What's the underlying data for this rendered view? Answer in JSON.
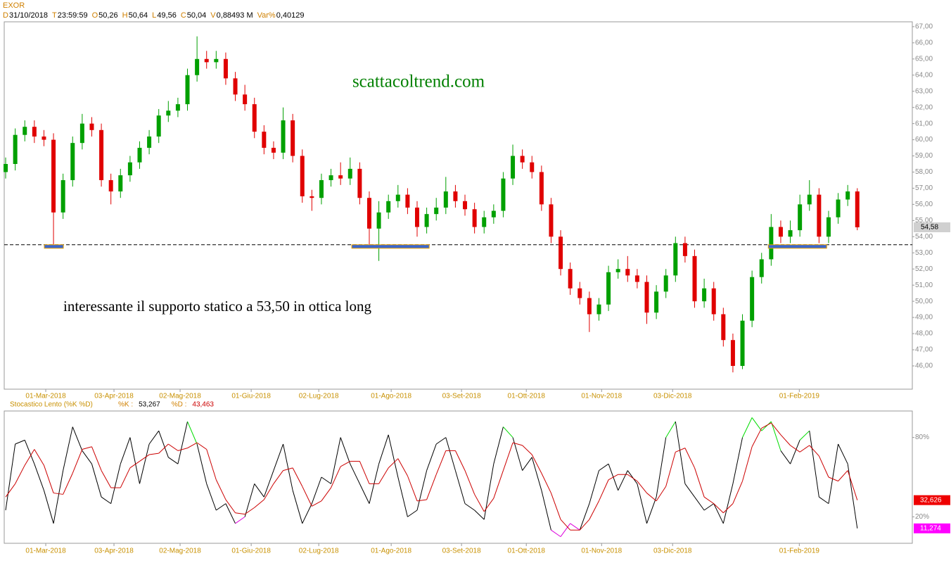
{
  "chart_data": [
    {
      "type": "candlestick",
      "title": "EXOR",
      "header": [
        {
          "key": "D",
          "value": "31/10/2018"
        },
        {
          "key": "T",
          "value": "23:59:59"
        },
        {
          "key": "O",
          "value": "50,26"
        },
        {
          "key": "H",
          "value": "50,64"
        },
        {
          "key": "L",
          "value": "49,56"
        },
        {
          "key": "C",
          "value": "50,04"
        },
        {
          "key": "V",
          "value": "0,88493 M"
        },
        {
          "key": "Var%",
          "value": "0,40129"
        }
      ],
      "annotations": [
        "scattacoltrend.com",
        "interessante il supporto statico a 53,50 in ottica long"
      ],
      "xlim": [
        -0.15,
        94.75
      ],
      "xticks": [
        {
          "value": 4.19,
          "label": "01-Mar-2018"
        },
        {
          "value": 11.32,
          "label": "03-Apr-2018"
        },
        {
          "value": 18.23,
          "label": "02-Mag-2018"
        },
        {
          "value": 25.66,
          "label": "01-Giu-2018"
        },
        {
          "value": 32.72,
          "label": "02-Lug-2018"
        },
        {
          "value": 40.29,
          "label": "01-Ago-2018"
        },
        {
          "value": 47.64,
          "label": "03-Set-2018"
        },
        {
          "value": 54.41,
          "label": "01-Ott-2018"
        },
        {
          "value": 62.28,
          "label": "01-Nov-2018"
        },
        {
          "value": 69.7,
          "label": "03-Dic-2018"
        },
        {
          "value": 82.94,
          "label": "01-Feb-2019"
        }
      ],
      "ylim": [
        44.56,
        67.3
      ],
      "yticks": [
        {
          "value": 46,
          "label": "46,00"
        },
        {
          "value": 47,
          "label": "47,00"
        },
        {
          "value": 48,
          "label": "48,00"
        },
        {
          "value": 49,
          "label": "49,00"
        },
        {
          "value": 50,
          "label": "50,00"
        },
        {
          "value": 51,
          "label": "51,00"
        },
        {
          "value": 52,
          "label": "52,00"
        },
        {
          "value": 53,
          "label": "53,00"
        },
        {
          "value": 54,
          "label": "54,00"
        },
        {
          "value": 55,
          "label": "55,00"
        },
        {
          "value": 56,
          "label": "56,00"
        },
        {
          "value": 57,
          "label": "57,00"
        },
        {
          "value": 58,
          "label": "58,00"
        },
        {
          "value": 59,
          "label": "59,00"
        },
        {
          "value": 60,
          "label": "60,00"
        },
        {
          "value": 61,
          "label": "61,00"
        },
        {
          "value": 62,
          "label": "62,00"
        },
        {
          "value": 63,
          "label": "63,00"
        },
        {
          "value": 64,
          "label": "64,00"
        },
        {
          "value": 65,
          "label": "65,00"
        },
        {
          "value": 66,
          "label": "66,00"
        },
        {
          "value": 67,
          "label": "67,00"
        }
      ],
      "up_color": "#00a000",
      "down_color": "#e00000",
      "open": [
        58.0,
        58.5,
        60.3,
        60.8,
        60.2,
        60.0,
        55.5,
        57.5,
        59.8,
        61.0,
        60.6,
        57.5,
        56.8,
        57.8,
        58.6,
        59.5,
        60.2,
        61.5,
        61.8,
        62.2,
        64.0,
        65.0,
        64.8,
        65.0,
        63.8,
        62.8,
        62.2,
        60.5,
        59.5,
        59.2,
        61.2,
        59.0,
        56.5,
        56.4,
        57.5,
        57.8,
        57.6,
        58.2,
        56.4,
        54.5,
        55.5,
        56.2,
        56.6,
        55.8,
        54.6,
        55.4,
        55.8,
        56.8,
        56.2,
        55.7,
        54.6,
        55.2,
        55.6,
        57.6,
        59.0,
        58.6,
        58.0,
        56.0,
        54.0,
        52.0,
        50.8,
        50.2,
        49.2,
        49.8,
        51.8,
        52.0,
        51.6,
        51.2,
        49.3,
        50.6,
        51.6,
        53.6,
        52.8,
        50.0,
        50.8,
        49.2,
        47.6,
        46.0,
        48.8,
        51.5,
        52.6,
        54.6,
        54.0,
        54.4,
        56.0,
        56.6,
        54.0,
        55.2,
        56.3,
        56.8
      ],
      "high": [
        58.9,
        60.7,
        61.2,
        61.2,
        60.6,
        60.4,
        57.9,
        60.2,
        61.6,
        61.4,
        61.0,
        57.9,
        58.2,
        59.0,
        59.9,
        60.6,
        61.9,
        62.4,
        62.6,
        64.4,
        66.4,
        65.5,
        65.5,
        65.4,
        64.2,
        63.4,
        62.6,
        60.9,
        59.9,
        62.0,
        61.6,
        59.4,
        56.9,
        57.9,
        58.2,
        58.6,
        58.9,
        58.6,
        56.8,
        56.2,
        56.6,
        57.2,
        57.0,
        56.2,
        55.8,
        56.4,
        57.7,
        57.2,
        56.6,
        56.1,
        55.6,
        56.0,
        58.0,
        59.7,
        59.4,
        59.0,
        58.4,
        56.4,
        54.4,
        52.4,
        51.2,
        50.6,
        50.2,
        52.2,
        52.6,
        52.8,
        52.0,
        51.6,
        51.0,
        52.0,
        54.0,
        54.0,
        53.2,
        51.4,
        51.2,
        49.6,
        48.0,
        49.2,
        51.9,
        53.0,
        55.4,
        55.0,
        55.0,
        56.6,
        57.5,
        57.0,
        55.6,
        56.7,
        57.2,
        57.0
      ],
      "low": [
        57.6,
        58.1,
        59.9,
        59.8,
        59.6,
        53.5,
        55.1,
        57.1,
        59.4,
        60.2,
        57.1,
        56.0,
        56.4,
        57.4,
        58.2,
        59.1,
        59.8,
        61.1,
        61.4,
        61.8,
        63.6,
        64.4,
        64.4,
        63.4,
        62.4,
        61.8,
        60.1,
        59.1,
        58.8,
        58.8,
        58.6,
        56.1,
        55.6,
        56.0,
        57.1,
        57.2,
        57.2,
        56.0,
        53.5,
        52.5,
        55.1,
        55.8,
        55.4,
        54.0,
        54.2,
        55.0,
        55.4,
        55.8,
        55.3,
        54.2,
        54.2,
        54.8,
        55.2,
        57.2,
        58.2,
        57.6,
        55.6,
        53.6,
        51.6,
        50.4,
        49.8,
        48.1,
        48.8,
        49.4,
        51.4,
        51.2,
        50.8,
        48.6,
        48.9,
        50.2,
        51.2,
        52.4,
        49.6,
        49.6,
        48.8,
        47.2,
        45.6,
        45.8,
        48.4,
        51.1,
        52.2,
        53.6,
        53.6,
        54.0,
        55.6,
        53.6,
        53.6,
        54.8,
        55.9,
        54.4
      ],
      "close": [
        58.5,
        60.3,
        60.8,
        60.2,
        60.0,
        55.5,
        57.5,
        59.8,
        61.0,
        60.6,
        57.5,
        56.8,
        57.8,
        58.6,
        59.5,
        60.2,
        61.5,
        61.8,
        62.2,
        64.0,
        65.0,
        64.8,
        65.0,
        63.8,
        62.8,
        62.2,
        60.5,
        59.5,
        59.2,
        61.2,
        59.0,
        56.5,
        56.4,
        57.5,
        57.8,
        57.6,
        58.2,
        56.4,
        54.5,
        55.5,
        56.2,
        56.6,
        55.8,
        54.6,
        55.4,
        55.8,
        56.8,
        56.2,
        55.7,
        54.6,
        55.2,
        55.6,
        57.6,
        59.0,
        58.6,
        58.0,
        56.0,
        54.0,
        52.0,
        50.8,
        50.2,
        49.2,
        49.8,
        51.8,
        52.0,
        51.6,
        51.2,
        49.3,
        50.6,
        51.6,
        53.6,
        52.8,
        50.0,
        50.8,
        49.2,
        47.6,
        46.0,
        48.8,
        51.5,
        52.6,
        54.6,
        54.0,
        54.4,
        56.0,
        56.6,
        54.0,
        55.2,
        56.3,
        56.8,
        54.58
      ],
      "support": 53.5,
      "support_zones": [
        [
          4.04,
          6.03
        ],
        [
          36.17,
          44.26
        ],
        [
          79.7,
          85.8
        ]
      ],
      "last_price": {
        "value": 54.58,
        "label": "54,58"
      }
    },
    {
      "type": "line",
      "title": "Stocastico Lento (%K %D)",
      "header": [
        {
          "key": "%K :",
          "value": "53,267"
        },
        {
          "key": "%D :",
          "value": "43,463"
        }
      ],
      "ylim": [
        0,
        100
      ],
      "yticks": [
        {
          "value": 80,
          "label": "80%"
        },
        {
          "value": 20,
          "label": "20%"
        }
      ],
      "high_color": "#00dd00",
      "low_color": "#dd00dd",
      "series": [
        {
          "color": "#000000",
          "last": {
            "value": 11.274,
            "label": "11,274"
          },
          "label_color": "#ff00ff",
          "values": [
            25,
            75,
            78,
            60,
            40,
            15,
            55,
            88,
            70,
            60,
            35,
            30,
            60,
            80,
            45,
            75,
            85,
            65,
            60,
            92,
            75,
            45,
            25,
            30,
            15,
            20,
            45,
            35,
            55,
            75,
            40,
            15,
            30,
            50,
            45,
            80,
            60,
            45,
            30,
            60,
            82,
            50,
            20,
            25,
            55,
            75,
            80,
            55,
            30,
            25,
            18,
            60,
            88,
            80,
            55,
            65,
            40,
            10,
            5,
            15,
            10,
            30,
            55,
            60,
            40,
            55,
            45,
            15,
            35,
            80,
            92,
            45,
            35,
            25,
            30,
            15,
            45,
            80,
            95,
            85,
            92,
            70,
            60,
            78,
            85,
            35,
            30,
            75,
            60,
            11.274
          ]
        },
        {
          "color": "#cc0000",
          "last": {
            "value": 32.626,
            "label": "32,626"
          },
          "label_color": "#ee0000",
          "values": [
            35,
            45,
            59,
            71,
            59,
            38,
            37,
            53,
            71,
            73,
            55,
            42,
            42,
            57,
            62,
            67,
            68,
            75,
            70,
            72,
            76,
            71,
            48,
            33,
            23,
            22,
            27,
            33,
            45,
            55,
            57,
            43,
            28,
            32,
            42,
            58,
            62,
            62,
            45,
            45,
            57,
            64,
            51,
            32,
            33,
            52,
            70,
            70,
            55,
            37,
            24,
            34,
            55,
            76,
            74,
            67,
            53,
            38,
            18,
            10,
            10,
            18,
            32,
            48,
            52,
            52,
            47,
            38,
            32,
            43,
            69,
            72,
            57,
            35,
            30,
            23,
            30,
            47,
            73,
            87,
            91,
            82,
            74,
            69,
            74,
            66,
            50,
            47,
            55,
            32.626
          ]
        }
      ]
    }
  ]
}
